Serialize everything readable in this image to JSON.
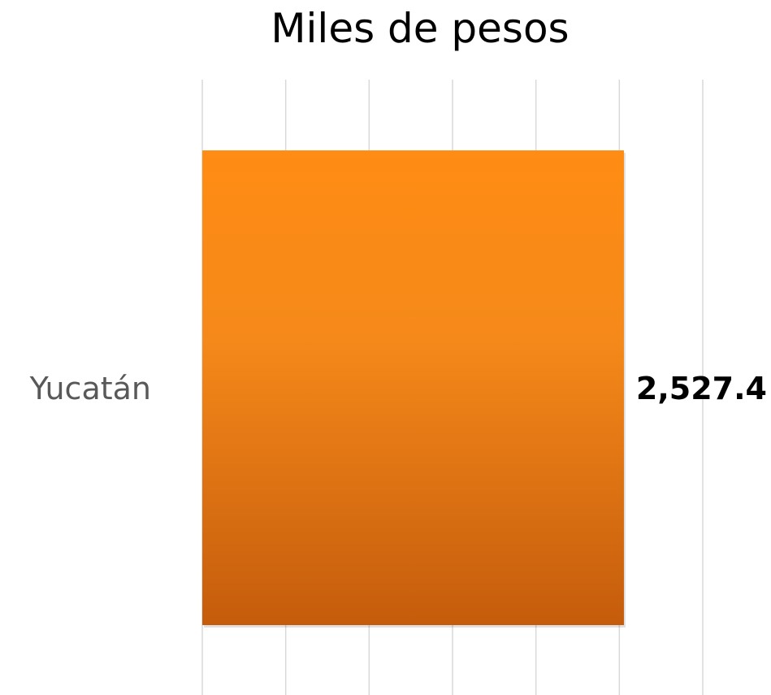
{
  "chart_data": {
    "type": "bar",
    "orientation": "horizontal",
    "title": "Miles de pesos",
    "categories": [
      "Yucatán"
    ],
    "series": [
      {
        "values": [
          2527.4
        ],
        "data_labels": [
          "2,527.4"
        ]
      }
    ],
    "xlim": [
      0,
      3000
    ],
    "xtick_step": 500,
    "grid": true,
    "legend": "none",
    "xlabel": "",
    "ylabel": "",
    "colors": {
      "bar_top": "#ff8c14",
      "bar_mid": "#f5891a",
      "bar_bottom": "#c55c0c",
      "grid": "#d9d9d9",
      "category_text": "#595959"
    }
  }
}
